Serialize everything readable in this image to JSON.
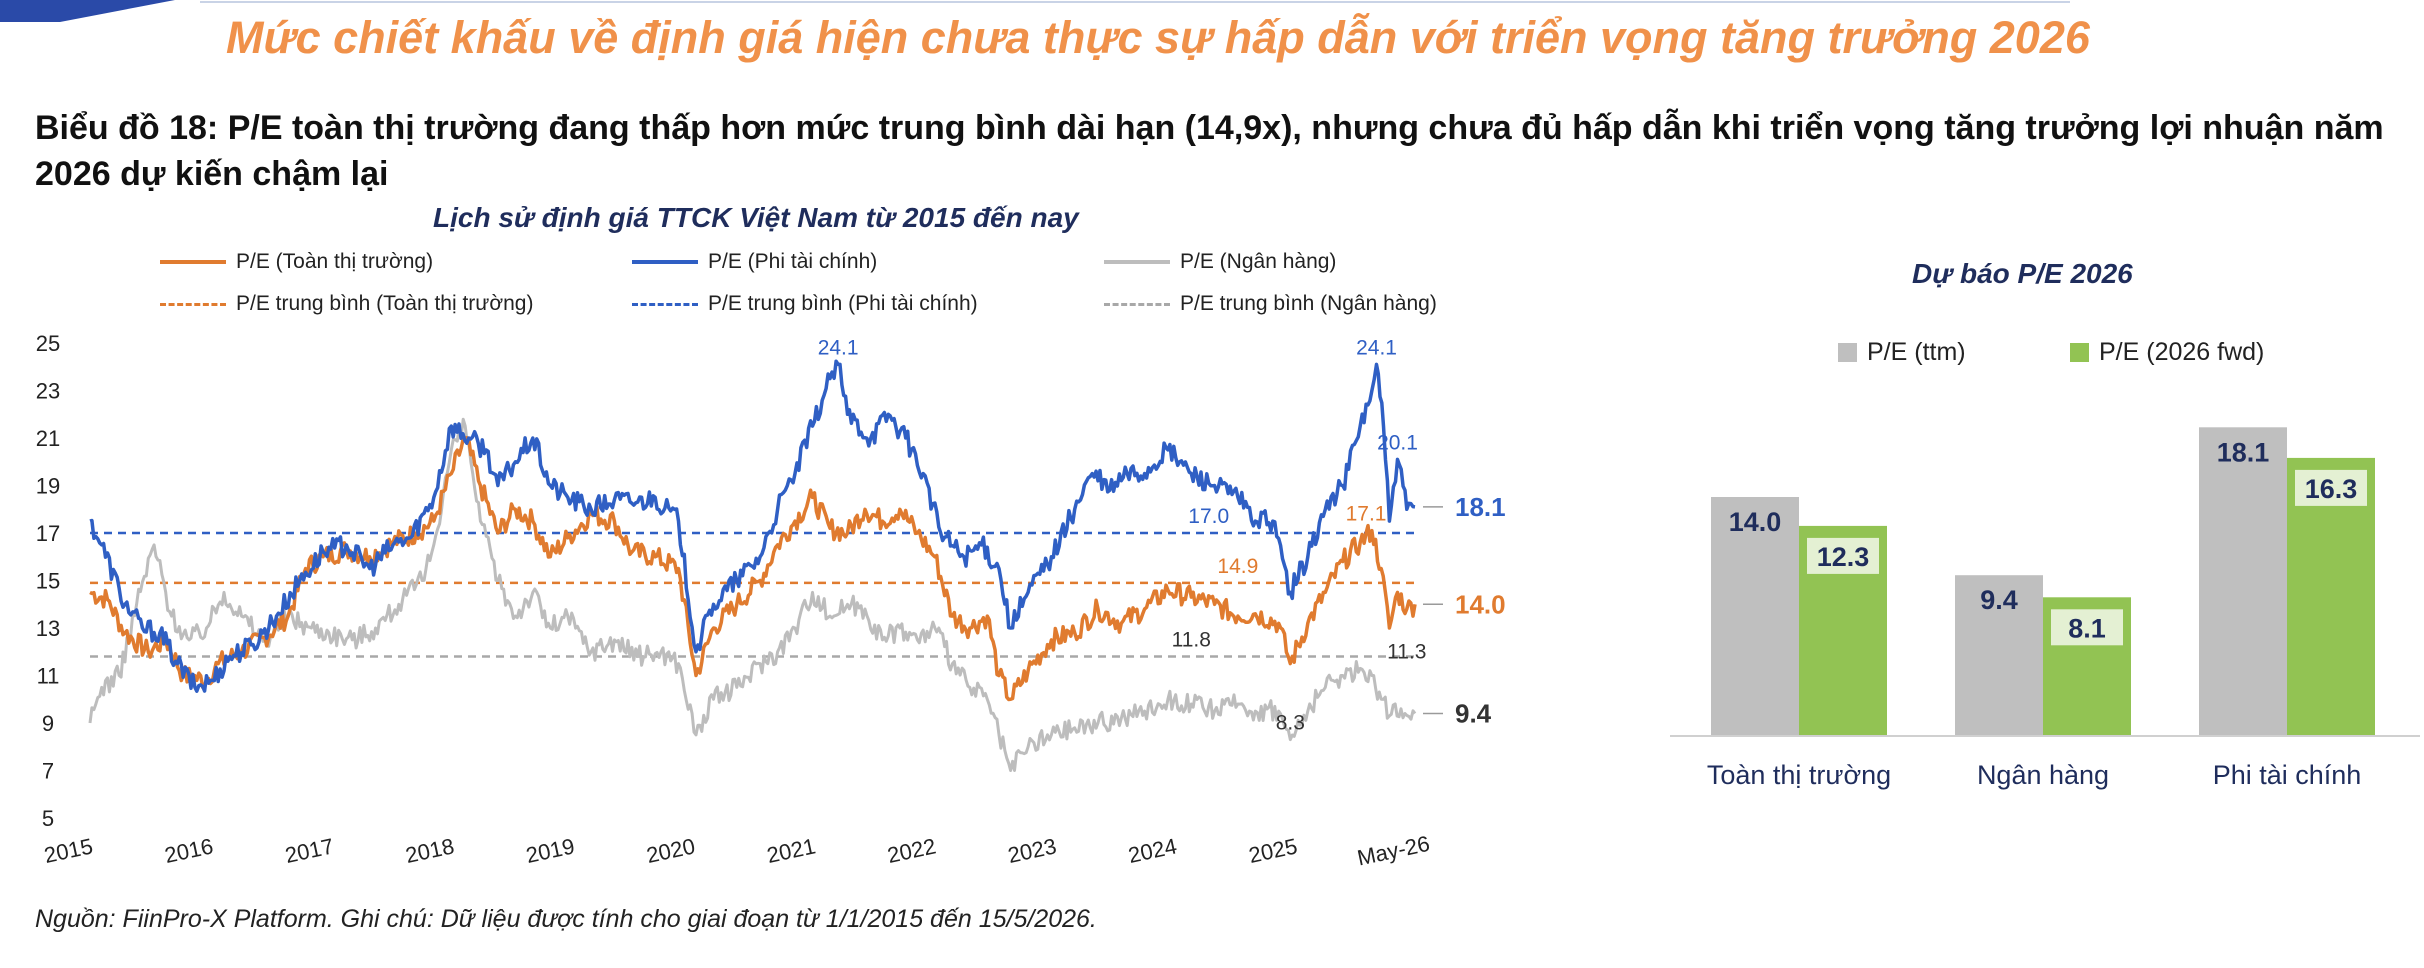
{
  "header": {
    "headline": "Mức chiết khấu về định giá hiện chưa thực sự hấp dẫn với triển vọng tăng trưởng 2026",
    "caption": "Biểu đồ 18: P/E toàn thị trường đang thấp hơn mức trung bình dài hạn (14,9x), nhưng chưa đủ hấp dẫn khi triển vọng tăng trưởng lợi nhuận năm 2026 dự kiến chậm lại"
  },
  "colors": {
    "headline": "#f0914a",
    "orange": "#e07b2f",
    "blue": "#2f5fc4",
    "gray": "#bdbdbd",
    "green": "#92c353",
    "ttm_bar": "#bfbfbf"
  },
  "chart_data": [
    {
      "type": "line",
      "title": "Lịch sử định giá TTCK Việt Nam từ 2015 đến nay",
      "x_tick_labels": [
        "2015",
        "2016",
        "2017",
        "2018",
        "2019",
        "2020",
        "2021",
        "2022",
        "2023",
        "2024",
        "2025",
        "May-26"
      ],
      "y_tick_labels": [
        "25",
        "23",
        "21",
        "19",
        "17",
        "15",
        "13",
        "11",
        "9",
        "7",
        "5"
      ],
      "ylim": [
        5,
        25
      ],
      "xlim": [
        2015.0,
        2026.37
      ],
      "grid": false,
      "legend_position": "top",
      "series": [
        {
          "name": "P/E (Toàn thị trường)",
          "color": "orange",
          "points": [
            [
              2015.0,
              14.5
            ],
            [
              2015.15,
              14.2
            ],
            [
              2015.3,
              12.8
            ],
            [
              2015.5,
              12.0
            ],
            [
              2015.65,
              12.5
            ],
            [
              2015.8,
              11.0
            ],
            [
              2016.0,
              10.8
            ],
            [
              2016.1,
              11.5
            ],
            [
              2016.3,
              12.0
            ],
            [
              2016.5,
              12.6
            ],
            [
              2016.7,
              13.5
            ],
            [
              2016.85,
              15.5
            ],
            [
              2017.0,
              16.0
            ],
            [
              2017.2,
              16.3
            ],
            [
              2017.4,
              16.0
            ],
            [
              2017.6,
              16.6
            ],
            [
              2017.8,
              17.0
            ],
            [
              2017.95,
              17.5
            ],
            [
              2018.1,
              19.5
            ],
            [
              2018.22,
              21.0
            ],
            [
              2018.35,
              19.0
            ],
            [
              2018.5,
              17.0
            ],
            [
              2018.65,
              18.0
            ],
            [
              2018.8,
              17.5
            ],
            [
              2018.95,
              16.0
            ],
            [
              2019.1,
              16.8
            ],
            [
              2019.3,
              17.8
            ],
            [
              2019.5,
              17.5
            ],
            [
              2019.65,
              16.2
            ],
            [
              2019.85,
              16.0
            ],
            [
              2020.05,
              15.5
            ],
            [
              2020.2,
              11.0
            ],
            [
              2020.35,
              13.0
            ],
            [
              2020.55,
              14.0
            ],
            [
              2020.75,
              15.0
            ],
            [
              2020.9,
              16.5
            ],
            [
              2021.05,
              17.5
            ],
            [
              2021.2,
              18.5
            ],
            [
              2021.35,
              17.2
            ],
            [
              2021.5,
              17.0
            ],
            [
              2021.65,
              18.0
            ],
            [
              2021.8,
              17.5
            ],
            [
              2021.95,
              18.0
            ],
            [
              2022.1,
              17.0
            ],
            [
              2022.25,
              16.0
            ],
            [
              2022.4,
              13.5
            ],
            [
              2022.55,
              13.0
            ],
            [
              2022.7,
              13.5
            ],
            [
              2022.8,
              11.0
            ],
            [
              2022.9,
              10.0
            ],
            [
              2023.05,
              11.2
            ],
            [
              2023.25,
              12.5
            ],
            [
              2023.45,
              12.8
            ],
            [
              2023.65,
              13.8
            ],
            [
              2023.85,
              13.2
            ],
            [
              2024.05,
              13.8
            ],
            [
              2024.25,
              14.6
            ],
            [
              2024.45,
              14.3
            ],
            [
              2024.65,
              14.0
            ],
            [
              2024.85,
              13.5
            ],
            [
              2025.0,
              13.6
            ],
            [
              2025.2,
              13.2
            ],
            [
              2025.3,
              11.5
            ],
            [
              2025.45,
              13.2
            ],
            [
              2025.6,
              14.5
            ],
            [
              2025.75,
              15.8
            ],
            [
              2025.9,
              16.6
            ],
            [
              2026.0,
              17.1
            ],
            [
              2026.08,
              15.5
            ],
            [
              2026.15,
              13.0
            ],
            [
              2026.22,
              14.5
            ],
            [
              2026.3,
              13.8
            ],
            [
              2026.37,
              14.0
            ]
          ]
        },
        {
          "name": "P/E (Phi tài chính)",
          "color": "blue",
          "points": [
            [
              2015.0,
              17.5
            ],
            [
              2015.1,
              16.5
            ],
            [
              2015.3,
              14.0
            ],
            [
              2015.45,
              13.0
            ],
            [
              2015.6,
              12.8
            ],
            [
              2015.75,
              11.5
            ],
            [
              2015.9,
              10.5
            ],
            [
              2016.05,
              10.8
            ],
            [
              2016.2,
              11.8
            ],
            [
              2016.4,
              12.3
            ],
            [
              2016.6,
              13.5
            ],
            [
              2016.8,
              15.0
            ],
            [
              2017.0,
              16.2
            ],
            [
              2017.2,
              16.5
            ],
            [
              2017.4,
              15.5
            ],
            [
              2017.6,
              16.5
            ],
            [
              2017.75,
              16.8
            ],
            [
              2017.95,
              18.5
            ],
            [
              2018.1,
              21.5
            ],
            [
              2018.25,
              21.0
            ],
            [
              2018.4,
              20.5
            ],
            [
              2018.5,
              19.0
            ],
            [
              2018.65,
              20.0
            ],
            [
              2018.8,
              21.0
            ],
            [
              2018.95,
              19.0
            ],
            [
              2019.1,
              18.5
            ],
            [
              2019.3,
              18.0
            ],
            [
              2019.5,
              18.4
            ],
            [
              2019.7,
              18.3
            ],
            [
              2019.85,
              18.5
            ],
            [
              2020.05,
              17.5
            ],
            [
              2020.2,
              12.0
            ],
            [
              2020.35,
              14.0
            ],
            [
              2020.55,
              15.0
            ],
            [
              2020.75,
              16.0
            ],
            [
              2020.9,
              18.0
            ],
            [
              2021.05,
              19.5
            ],
            [
              2021.2,
              21.5
            ],
            [
              2021.35,
              23.5
            ],
            [
              2021.42,
              24.1
            ],
            [
              2021.5,
              22.0
            ],
            [
              2021.7,
              21.0
            ],
            [
              2021.85,
              22.0
            ],
            [
              2022.0,
              21.0
            ],
            [
              2022.15,
              19.5
            ],
            [
              2022.3,
              17.0
            ],
            [
              2022.5,
              16.0
            ],
            [
              2022.65,
              16.5
            ],
            [
              2022.8,
              15.5
            ],
            [
              2022.9,
              13.0
            ],
            [
              2023.05,
              14.5
            ],
            [
              2023.25,
              16.0
            ],
            [
              2023.45,
              18.0
            ],
            [
              2023.6,
              19.5
            ],
            [
              2023.75,
              18.8
            ],
            [
              2023.9,
              19.5
            ],
            [
              2024.05,
              19.5
            ],
            [
              2024.25,
              20.5
            ],
            [
              2024.45,
              19.5
            ],
            [
              2024.65,
              19.0
            ],
            [
              2024.85,
              18.5
            ],
            [
              2025.0,
              17.5
            ],
            [
              2025.15,
              17.5
            ],
            [
              2025.3,
              14.5
            ],
            [
              2025.45,
              16.0
            ],
            [
              2025.6,
              18.0
            ],
            [
              2025.75,
              19.0
            ],
            [
              2025.9,
              21.5
            ],
            [
              2026.0,
              23.0
            ],
            [
              2026.04,
              24.1
            ],
            [
              2026.1,
              21.5
            ],
            [
              2026.15,
              17.5
            ],
            [
              2026.22,
              20.1
            ],
            [
              2026.3,
              18.0
            ],
            [
              2026.37,
              18.1
            ]
          ]
        },
        {
          "name": "P/E (Ngân hàng)",
          "color": "gray",
          "points": [
            [
              2015.0,
              9.0
            ],
            [
              2015.1,
              10.5
            ],
            [
              2015.25,
              11.0
            ],
            [
              2015.4,
              14.0
            ],
            [
              2015.55,
              16.5
            ],
            [
              2015.7,
              13.5
            ],
            [
              2015.85,
              12.5
            ],
            [
              2016.0,
              13.0
            ],
            [
              2016.15,
              14.5
            ],
            [
              2016.3,
              13.5
            ],
            [
              2016.5,
              12.5
            ],
            [
              2016.7,
              13.5
            ],
            [
              2016.9,
              13.0
            ],
            [
              2017.05,
              12.8
            ],
            [
              2017.25,
              12.5
            ],
            [
              2017.45,
              13.0
            ],
            [
              2017.65,
              14.0
            ],
            [
              2017.85,
              15.0
            ],
            [
              2017.95,
              16.5
            ],
            [
              2018.1,
              20.5
            ],
            [
              2018.22,
              21.5
            ],
            [
              2018.35,
              17.5
            ],
            [
              2018.5,
              15.0
            ],
            [
              2018.65,
              13.5
            ],
            [
              2018.8,
              14.5
            ],
            [
              2018.95,
              13.0
            ],
            [
              2019.1,
              13.5
            ],
            [
              2019.3,
              12.0
            ],
            [
              2019.5,
              12.5
            ],
            [
              2019.7,
              11.8
            ],
            [
              2019.9,
              12.0
            ],
            [
              2020.05,
              11.5
            ],
            [
              2020.2,
              8.5
            ],
            [
              2020.35,
              10.0
            ],
            [
              2020.55,
              10.5
            ],
            [
              2020.75,
              11.5
            ],
            [
              2020.9,
              12.0
            ],
            [
              2021.05,
              13.0
            ],
            [
              2021.2,
              14.5
            ],
            [
              2021.35,
              13.5
            ],
            [
              2021.5,
              14.0
            ],
            [
              2021.65,
              13.8
            ],
            [
              2021.8,
              12.5
            ],
            [
              2021.95,
              13.0
            ],
            [
              2022.1,
              12.5
            ],
            [
              2022.25,
              13.0
            ],
            [
              2022.4,
              11.5
            ],
            [
              2022.55,
              10.5
            ],
            [
              2022.7,
              10.0
            ],
            [
              2022.8,
              8.5
            ],
            [
              2022.9,
              7.0
            ],
            [
              2023.05,
              8.0
            ],
            [
              2023.25,
              8.5
            ],
            [
              2023.45,
              8.8
            ],
            [
              2023.65,
              9.0
            ],
            [
              2023.85,
              9.2
            ],
            [
              2024.05,
              9.5
            ],
            [
              2024.25,
              10.0
            ],
            [
              2024.45,
              9.8
            ],
            [
              2024.65,
              9.5
            ],
            [
              2024.85,
              9.8
            ],
            [
              2025.0,
              9.5
            ],
            [
              2025.2,
              9.5
            ],
            [
              2025.3,
              8.3
            ],
            [
              2025.45,
              9.5
            ],
            [
              2025.6,
              10.5
            ],
            [
              2025.75,
              11.0
            ],
            [
              2025.9,
              11.3
            ],
            [
              2026.0,
              11.0
            ],
            [
              2026.08,
              10.0
            ],
            [
              2026.15,
              9.3
            ],
            [
              2026.25,
              9.6
            ],
            [
              2026.37,
              9.4
            ]
          ]
        },
        {
          "name": "P/E trung bình (Toàn thị trường)",
          "color": "orange",
          "style": "dashed",
          "value": 14.9
        },
        {
          "name": "P/E trung bình (Phi tài chính)",
          "color": "blue",
          "style": "dashed",
          "value": 17.0
        },
        {
          "name": "P/E trung bình (Ngân hàng)",
          "color": "gray",
          "style": "dashed",
          "value": 11.8
        }
      ],
      "annotations": [
        {
          "text": "24.1",
          "color": "blue",
          "x": 2021.42,
          "y": 24.1
        },
        {
          "text": "24.1",
          "color": "blue",
          "x": 2026.04,
          "y": 24.1
        },
        {
          "text": "20.1",
          "color": "blue",
          "x": 2026.22,
          "y": 20.1
        },
        {
          "text": "17.0",
          "color": "blue",
          "x": 2024.6,
          "y": 17.0
        },
        {
          "text": "17.1",
          "color": "orange",
          "x": 2025.95,
          "y": 17.1
        },
        {
          "text": "14.9",
          "color": "orange",
          "x": 2024.85,
          "y": 14.9
        },
        {
          "text": "11.8",
          "color": "dark",
          "x": 2024.45,
          "y": 11.8
        },
        {
          "text": "11.3",
          "color": "dark",
          "x": 2026.3,
          "y": 11.3
        },
        {
          "text": "8.3",
          "color": "dark",
          "x": 2025.3,
          "y": 8.3
        }
      ],
      "end_labels": [
        {
          "text": "18.1",
          "color": "blue",
          "y": 18.1
        },
        {
          "text": "14.0",
          "color": "orange",
          "y": 14.0
        },
        {
          "text": "9.4",
          "color": "dark",
          "y": 9.4
        }
      ]
    },
    {
      "type": "bar",
      "title": "Dự báo P/E 2026",
      "legend_position": "top",
      "categories": [
        "Toàn thị trường",
        "Ngân hàng",
        "Phi tài chính"
      ],
      "ylim": [
        0,
        20
      ],
      "series": [
        {
          "name": "P/E (ttm)",
          "color": "ttm_bar",
          "values": [
            14.0,
            9.4,
            18.1
          ]
        },
        {
          "name": "P/E (2026 fwd)",
          "color": "green",
          "values": [
            12.3,
            8.1,
            16.3
          ]
        }
      ]
    }
  ],
  "source": "Nguồn: FiinPro-X Platform. Ghi chú: Dữ liệu được tính cho giai đoạn từ 1/1/2015 đến 15/5/2026."
}
